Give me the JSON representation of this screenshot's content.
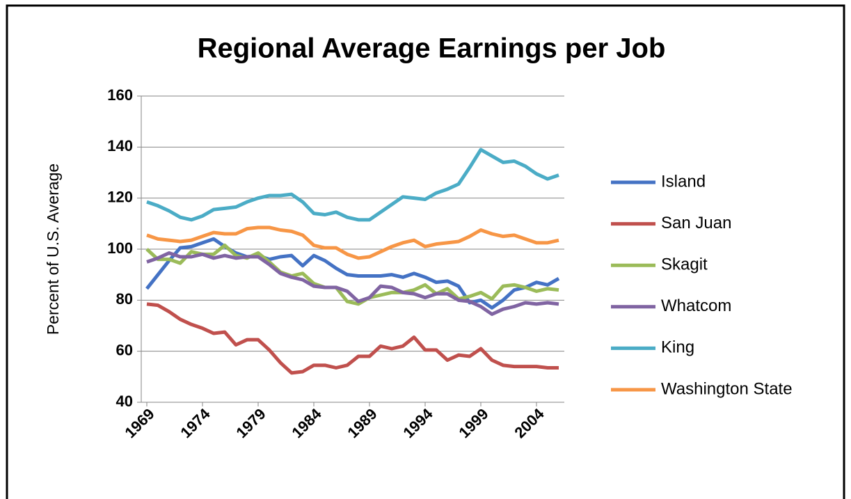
{
  "chart_data": {
    "type": "line",
    "title": "Regional Average Earnings per Job",
    "ylabel": "Percent of U.S. Average",
    "x": [
      1969,
      1970,
      1971,
      1972,
      1973,
      1974,
      1975,
      1976,
      1977,
      1978,
      1979,
      1980,
      1981,
      1982,
      1983,
      1984,
      1985,
      1986,
      1987,
      1988,
      1989,
      1990,
      1991,
      1992,
      1993,
      1994,
      1995,
      1996,
      1997,
      1998,
      1999,
      2000,
      2001,
      2002,
      2003,
      2004,
      2005,
      2006
    ],
    "xlim": [
      1968.5,
      2006.5
    ],
    "xticks": [
      1969,
      1974,
      1979,
      1984,
      1989,
      1994,
      1999,
      2004
    ],
    "ylim": [
      40,
      160
    ],
    "yticks": [
      40,
      60,
      80,
      100,
      120,
      140,
      160
    ],
    "grid": true,
    "series": [
      {
        "name": "Island",
        "color": "#4472c4",
        "values": [
          84.5,
          90,
          95.5,
          100.5,
          101,
          102.5,
          104,
          101,
          98.5,
          97,
          97.5,
          96,
          97,
          97.5,
          93.5,
          97.5,
          95.5,
          92.5,
          90,
          89.5,
          89.5,
          89.5,
          90,
          89,
          90.5,
          89,
          87,
          87.5,
          85.5,
          79,
          80,
          77,
          80,
          84,
          85,
          87,
          86,
          88.5
        ]
      },
      {
        "name": "San Juan",
        "color": "#c0504d",
        "values": [
          78.5,
          78,
          75.5,
          72.5,
          70.5,
          69,
          67,
          67.5,
          62.5,
          64.5,
          64.5,
          60.5,
          55.5,
          51.5,
          52,
          54.5,
          54.5,
          53.5,
          54.5,
          58,
          58,
          62,
          61,
          62,
          65.5,
          60.5,
          60.5,
          56.5,
          58.5,
          58,
          61,
          56.5,
          54.5,
          54,
          54,
          54,
          53.5,
          53.5
        ]
      },
      {
        "name": "Skagit",
        "color": "#9bbb59",
        "values": [
          100,
          96,
          96,
          94.5,
          99,
          98,
          98,
          101.5,
          97.5,
          96.5,
          98.5,
          95,
          91,
          89.5,
          90.5,
          86.5,
          85,
          85,
          79.5,
          78.5,
          81,
          82,
          83,
          83,
          84,
          86,
          82.5,
          84.5,
          80.5,
          81.5,
          83,
          80.5,
          85.5,
          86,
          85,
          83.5,
          84.5,
          84
        ]
      },
      {
        "name": "Whatcom",
        "color": "#8064a2",
        "values": [
          95,
          96.5,
          98.5,
          97,
          97,
          98,
          96.5,
          97.5,
          96.5,
          97,
          97,
          94,
          90.5,
          89,
          88,
          85.5,
          85,
          85,
          83.5,
          79.5,
          81,
          85.5,
          85,
          83,
          82.5,
          81,
          82.5,
          82.5,
          80,
          79.5,
          77.5,
          74.5,
          76.5,
          77.5,
          79,
          78.5,
          79,
          78.5
        ]
      },
      {
        "name": "King",
        "color": "#4bacc6",
        "values": [
          118.5,
          117,
          115,
          112.5,
          111.5,
          113,
          115.5,
          116,
          116.5,
          118.5,
          120,
          121,
          121,
          121.5,
          118.5,
          114,
          113.5,
          114.5,
          112.5,
          111.5,
          111.5,
          114.5,
          117.5,
          120.5,
          120,
          119.5,
          122,
          123.5,
          125.5,
          132,
          139,
          136.5,
          134,
          134.5,
          132.5,
          129.5,
          127.5,
          129
        ]
      },
      {
        "name": "Washington State",
        "color": "#f79646",
        "values": [
          105.5,
          104,
          103.5,
          103,
          103.5,
          105,
          106.5,
          106,
          106,
          108,
          108.5,
          108.5,
          107.5,
          107,
          105.5,
          101.5,
          100.5,
          100.5,
          98,
          96.5,
          97,
          99,
          101,
          102.5,
          103.5,
          101,
          102,
          102.5,
          103,
          105,
          107.5,
          106,
          105,
          105.5,
          104,
          102.5,
          102.5,
          103.5
        ]
      }
    ]
  }
}
